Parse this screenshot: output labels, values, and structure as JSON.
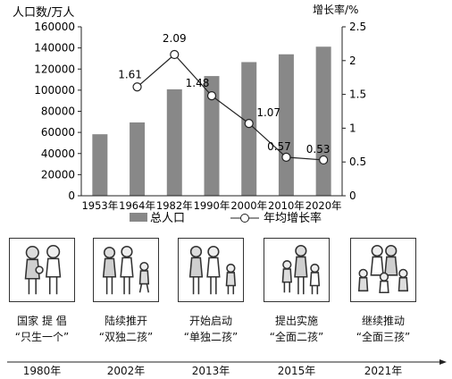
{
  "chart_data": {
    "type": "bar+line",
    "categories": [
      "1953年",
      "1964年",
      "1982年",
      "1990年",
      "2000年",
      "2010年",
      "2020年"
    ],
    "bar_series": {
      "name": "总人口",
      "values": [
        58260,
        69458,
        100818,
        113368,
        126583,
        133972,
        141178
      ],
      "color": "#888888"
    },
    "line_series": {
      "name": "年均增长率",
      "values": [
        null,
        1.61,
        2.09,
        1.48,
        1.07,
        0.57,
        0.53
      ],
      "labels": [
        "",
        "1.61",
        "2.09",
        "1.48",
        "1.07",
        "0.57",
        "0.53"
      ]
    },
    "y_left": {
      "label": "人口数/万人",
      "range": [
        0,
        160000
      ],
      "ticks": [
        "0",
        "20000",
        "40000",
        "60000",
        "80000",
        "100000",
        "120000",
        "140000",
        "160000"
      ]
    },
    "y_right": {
      "label": "增长率/%",
      "range": [
        0,
        2.5
      ],
      "ticks": [
        "0",
        "0.5",
        "1",
        "1.5",
        "2",
        "2.5"
      ]
    },
    "legend": {
      "placement": "bottom"
    },
    "grid": false
  },
  "policies": [
    {
      "icon": "couple-with-one-child-icon",
      "line1": "国家 提 倡",
      "line2": "“只生一个”"
    },
    {
      "icon": "family-with-two-children-icon",
      "line1": "陆续推开",
      "line2": "“双独二孩”"
    },
    {
      "icon": "family-with-two-children-icon",
      "line1": "开始启动",
      "line2": "“单独二孩”"
    },
    {
      "icon": "family-with-two-children-icon",
      "line1": "提出实施",
      "line2": "“全面二孩”"
    },
    {
      "icon": "family-with-three-children-icon",
      "line1": "继续推动",
      "line2": "“全面三孩”"
    }
  ],
  "timeline": [
    "1980年",
    "2002年",
    "2013年",
    "2015年",
    "2021年"
  ]
}
